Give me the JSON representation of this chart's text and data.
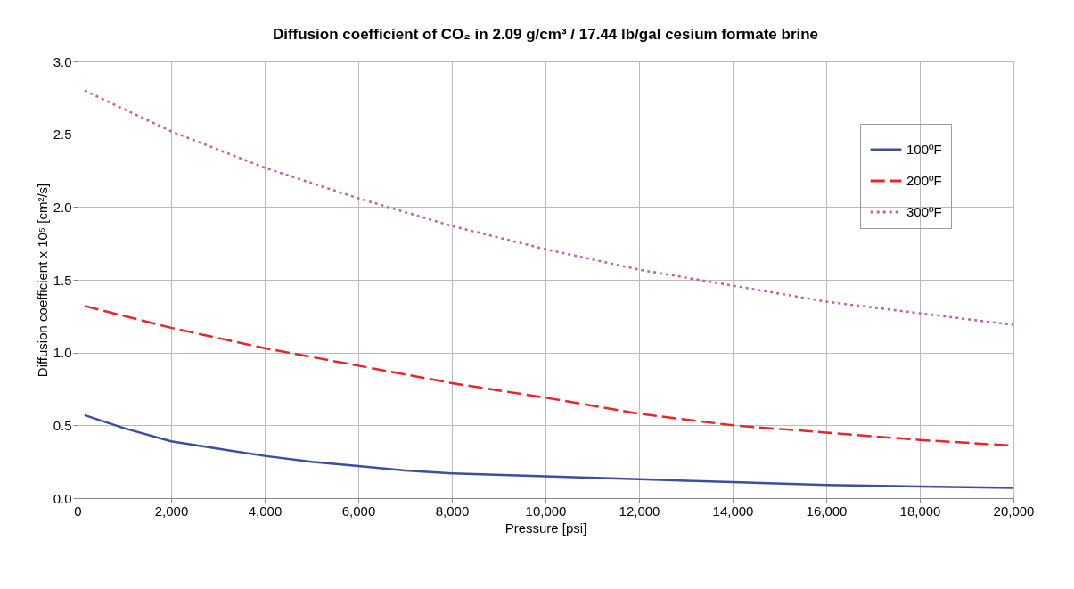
{
  "chart_data": {
    "type": "line",
    "title": "Diffusion coefficient of CO₂ in 2.09 g/cm³ / 17.44 lb/gal cesium formate brine",
    "xlabel": "Pressure [psi]",
    "ylabel": "Diffusion coefficient  x 10⁵ [cm²/s]",
    "xlim": [
      0,
      20000
    ],
    "xticks": [
      {
        "value": 0,
        "label": "0"
      },
      {
        "value": 2000,
        "label": "2,000"
      },
      {
        "value": 4000,
        "label": "4,000"
      },
      {
        "value": 6000,
        "label": "6,000"
      },
      {
        "value": 8000,
        "label": "8,000"
      },
      {
        "value": 10000,
        "label": "10,000"
      },
      {
        "value": 12000,
        "label": "12,000"
      },
      {
        "value": 14000,
        "label": "14,000"
      },
      {
        "value": 16000,
        "label": "16,000"
      },
      {
        "value": 18000,
        "label": "18,000"
      },
      {
        "value": 20000,
        "label": "20,000"
      }
    ],
    "ylim": [
      0,
      3
    ],
    "yticks": [
      {
        "value": 0,
        "label": "0.0"
      },
      {
        "value": 0.5,
        "label": "0.5"
      },
      {
        "value": 1,
        "label": "1.0"
      },
      {
        "value": 1.5,
        "label": "1.5"
      },
      {
        "value": 2,
        "label": "2.0"
      },
      {
        "value": 2.5,
        "label": "2.5"
      },
      {
        "value": 3,
        "label": "3.0"
      }
    ],
    "grid": true,
    "legend": "top right",
    "series": [
      {
        "name": "100ºF",
        "color": "#3b4ea0",
        "line_style": "solid",
        "x": [
          150,
          1000,
          2000,
          3000,
          4000,
          5000,
          6000,
          7000,
          8000,
          10000,
          12000,
          14000,
          16000,
          18000,
          20000
        ],
        "values": [
          0.57,
          0.48,
          0.39,
          0.34,
          0.29,
          0.25,
          0.22,
          0.19,
          0.17,
          0.15,
          0.13,
          0.11,
          0.09,
          0.08,
          0.07
        ]
      },
      {
        "name": "200ºF",
        "color": "#e8262a",
        "line_style": "dashed",
        "x": [
          150,
          2000,
          4000,
          6000,
          8000,
          10000,
          12000,
          14000,
          16000,
          18000,
          20000
        ],
        "values": [
          1.32,
          1.17,
          1.03,
          0.91,
          0.79,
          0.69,
          0.58,
          0.5,
          0.45,
          0.4,
          0.36
        ]
      },
      {
        "name": "300ºF",
        "color": "#c060a8",
        "line_style": "dotted",
        "x": [
          150,
          2000,
          4000,
          6000,
          8000,
          10000,
          12000,
          14000,
          16000,
          18000,
          20000
        ],
        "values": [
          2.8,
          2.52,
          2.27,
          2.06,
          1.87,
          1.71,
          1.57,
          1.46,
          1.35,
          1.27,
          1.19
        ]
      }
    ]
  }
}
